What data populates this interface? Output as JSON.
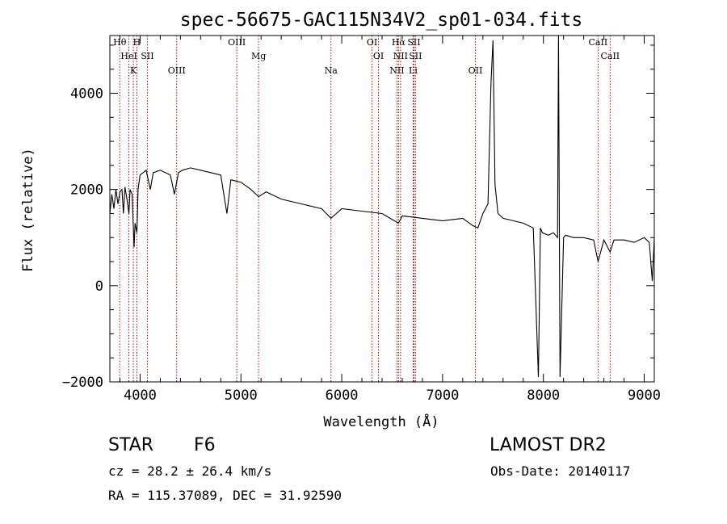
{
  "chart_data": {
    "type": "line",
    "title": "spec-56675-GAC115N34V2_sp01-034.fits",
    "xlabel": "Wavelength (Å)",
    "ylabel": "Flux (relative)",
    "xlim": [
      3700,
      9100
    ],
    "ylim": [
      -2000,
      5200
    ],
    "xticks": [
      4000,
      5000,
      6000,
      7000,
      8000,
      9000
    ],
    "yticks": [
      -2000,
      0,
      2000,
      4000
    ],
    "grid": false,
    "series": [
      {
        "x": [
          3700,
          3720,
          3740,
          3760,
          3780,
          3800,
          3820,
          3835,
          3850,
          3870,
          3889,
          3900,
          3920,
          3933,
          3940,
          3950,
          3968,
          3980,
          4000,
          4030,
          4060,
          4101,
          4130,
          4200,
          4250,
          4300,
          4340,
          4380,
          4420,
          4500,
          4600,
          4700,
          4800,
          4861,
          4900,
          5000,
          5100,
          5175,
          5250,
          5400,
          5600,
          5800,
          5893,
          6000,
          6200,
          6400,
          6563,
          6600,
          6800,
          7000,
          7200,
          7300,
          7350,
          7400,
          7450,
          7480,
          7500,
          7520,
          7550,
          7600,
          7700,
          7800,
          7900,
          7950,
          7970,
          7990,
          8050,
          8100,
          8140,
          8150,
          8165,
          8200,
          8220,
          8300,
          8400,
          8498,
          8542,
          8600,
          8662,
          8700,
          8800,
          8900,
          9000,
          9050,
          9080,
          9100
        ],
        "y": [
          1500,
          1900,
          1600,
          2000,
          1700,
          1950,
          2000,
          1500,
          2050,
          1800,
          1500,
          2000,
          1900,
          1200,
          800,
          1300,
          1100,
          2000,
          2300,
          2350,
          2400,
          2000,
          2350,
          2400,
          2350,
          2300,
          1900,
          2350,
          2400,
          2450,
          2400,
          2350,
          2300,
          1500,
          2200,
          2150,
          2000,
          1850,
          1950,
          1800,
          1700,
          1600,
          1400,
          1600,
          1550,
          1500,
          1300,
          1450,
          1400,
          1350,
          1400,
          1250,
          1200,
          1500,
          1700,
          4200,
          5100,
          2100,
          1500,
          1400,
          1350,
          1300,
          1200,
          -1900,
          1200,
          1100,
          1050,
          1100,
          1000,
          5200,
          -1900,
          1000,
          1050,
          1000,
          1000,
          950,
          500,
          950,
          700,
          950,
          950,
          900,
          1000,
          900,
          100,
          1000
        ]
      }
    ],
    "lines": [
      {
        "label": "Hθ",
        "wavelength": 3798
      },
      {
        "label": "HeI",
        "wavelength": 3889
      },
      {
        "label": "K",
        "wavelength": 3933
      },
      {
        "label": "H",
        "wavelength": 3968
      },
      {
        "label": "SII",
        "wavelength": 4072
      },
      {
        "label": "OIII",
        "wavelength": 4363
      },
      {
        "label": "OIII",
        "wavelength": 4959
      },
      {
        "label": "Mg",
        "wavelength": 5175
      },
      {
        "label": "Na",
        "wavelength": 5893
      },
      {
        "label": "OI",
        "wavelength": 6300
      },
      {
        "label": "OI",
        "wavelength": 6364
      },
      {
        "label": "NII",
        "wavelength": 6548
      },
      {
        "label": "Hα",
        "wavelength": 6563
      },
      {
        "label": "NII",
        "wavelength": 6583
      },
      {
        "label": "Li",
        "wavelength": 6708
      },
      {
        "label": "SII",
        "wavelength": 6716
      },
      {
        "label": "SII",
        "wavelength": 6731
      },
      {
        "label": "OII",
        "wavelength": 7325
      },
      {
        "label": "CaII",
        "wavelength": 8542
      },
      {
        "label": "CaII",
        "wavelength": 8662
      }
    ]
  },
  "footer": {
    "object_class": "STAR",
    "subclass": "F6",
    "survey": "LAMOST DR2",
    "redshift": "cz = 28.2 ± 26.4 km/s",
    "obs_date": "Obs-Date: 20140117",
    "coords": "RA = 115.37089, DEC =  31.92590"
  }
}
